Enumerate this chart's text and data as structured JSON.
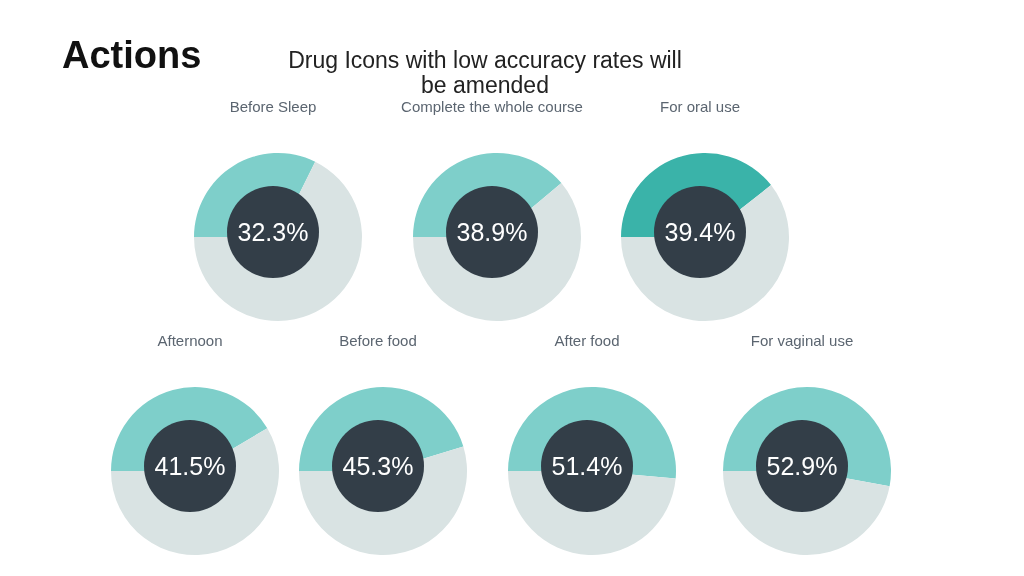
{
  "chart_data": [
    {
      "type": "donut",
      "title": "Before Sleep",
      "categories": [
        null,
        null
      ],
      "values": [
        32.3,
        67.7
      ],
      "colors": [
        "#7ecfca",
        "#d9e3e3"
      ],
      "value_labels": [
        "32.3%",
        null
      ],
      "annotations": [
        "Actions",
        "Drug Icons with low accuracy rates will be amended"
      ]
    },
    {
      "type": "donut",
      "title": "Complete the whole course",
      "categories": [
        null,
        null
      ],
      "values": [
        38.9,
        61.1
      ],
      "colors": [
        "#7ecfca",
        "#d9e3e3"
      ],
      "value_labels": [
        "38.9%",
        null
      ]
    },
    {
      "type": "donut",
      "title": "For oral use",
      "categories": [
        null,
        null
      ],
      "values": [
        39.4,
        60.6
      ],
      "colors": [
        "#3ab3a9",
        "#d9e3e3"
      ],
      "value_labels": [
        "39.4%",
        null
      ]
    },
    {
      "type": "donut",
      "title": "Afternoon",
      "categories": [
        null,
        null
      ],
      "values": [
        41.5,
        58.5
      ],
      "colors": [
        "#7ecfca",
        "#d9e3e3"
      ],
      "value_labels": [
        "41.5%",
        null
      ]
    },
    {
      "type": "donut",
      "title": "Before food",
      "categories": [
        null,
        null
      ],
      "values": [
        45.3,
        54.7
      ],
      "colors": [
        "#7ecfca",
        "#d9e3e3"
      ],
      "value_labels": [
        "45.3%",
        null
      ]
    },
    {
      "type": "donut",
      "title": "After food",
      "categories": [
        null,
        null
      ],
      "values": [
        51.4,
        48.6
      ],
      "colors": [
        "#7ecfca",
        "#d9e3e3"
      ],
      "value_labels": [
        "51.4%",
        null
      ]
    },
    {
      "type": "donut",
      "title": "For vaginal use",
      "categories": [
        null,
        null
      ],
      "values": [
        52.9,
        47.1
      ],
      "colors": [
        "#7ecfca",
        "#d9e3e3"
      ],
      "value_labels": [
        "52.9%",
        null
      ]
    }
  ]
}
